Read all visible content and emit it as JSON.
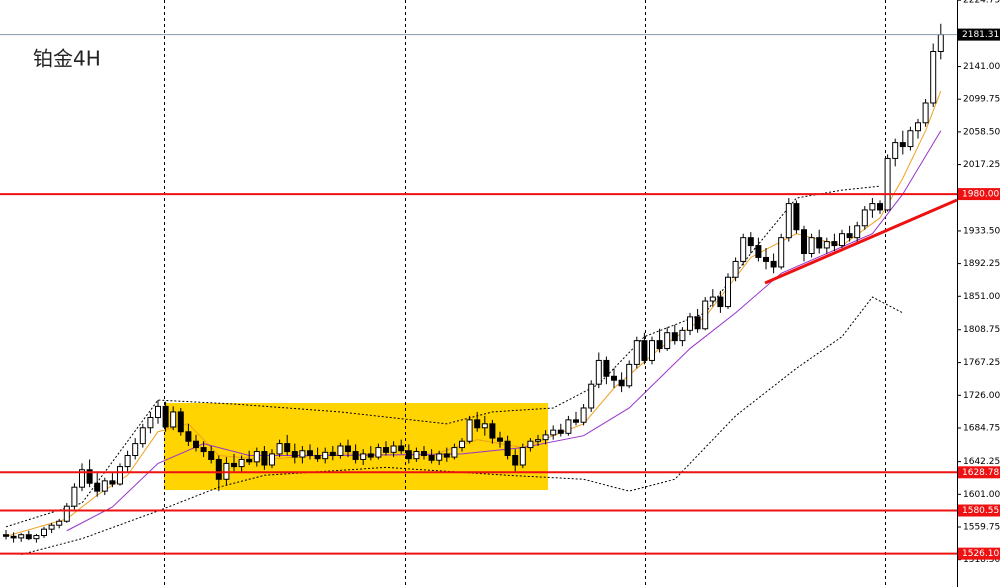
{
  "chart_data": {
    "type": "candlestick",
    "title": "铂金4H",
    "ylim": [
      1484,
      2225
    ],
    "yticks": [
      2224.75,
      {
        "value": 2141,
        "label": "2141.00"
      },
      2099.75,
      {
        "value": 2058.5,
        "label": "2058.50"
      },
      2017.25,
      {
        "value": 1933.5,
        "label": "1933.50"
      },
      1892.25,
      {
        "value": 1851,
        "label": "1851.00"
      },
      1808.75,
      1767.25,
      {
        "value": 1726,
        "label": "1726.00"
      },
      1684.75,
      1642.25,
      {
        "value": 1601,
        "label": "1601.00"
      },
      1559.75,
      {
        "value": 1518.5,
        "label": "1518.50"
      }
    ],
    "up_color": "#ffffff",
    "down_color": "#000000",
    "edge_color": "#000000",
    "ohlc": [
      [
        1550,
        1556,
        1544,
        1548
      ],
      [
        1548,
        1553,
        1540,
        1546
      ],
      [
        1546,
        1552,
        1541,
        1550
      ],
      [
        1550,
        1555,
        1543,
        1545
      ],
      [
        1545,
        1551,
        1540,
        1549
      ],
      [
        1549,
        1560,
        1546,
        1557
      ],
      [
        1557,
        1565,
        1552,
        1562
      ],
      [
        1562,
        1570,
        1558,
        1567
      ],
      [
        1567,
        1590,
        1565,
        1586
      ],
      [
        1586,
        1615,
        1582,
        1610
      ],
      [
        1610,
        1640,
        1605,
        1632
      ],
      [
        1632,
        1645,
        1610,
        1615
      ],
      [
        1615,
        1630,
        1598,
        1605
      ],
      [
        1605,
        1622,
        1600,
        1618
      ],
      [
        1618,
        1628,
        1610,
        1614
      ],
      [
        1614,
        1640,
        1612,
        1636
      ],
      [
        1636,
        1656,
        1630,
        1650
      ],
      [
        1650,
        1672,
        1645,
        1665
      ],
      [
        1665,
        1690,
        1660,
        1685
      ],
      [
        1685,
        1705,
        1678,
        1698
      ],
      [
        1698,
        1720,
        1690,
        1712
      ],
      [
        1712,
        1718,
        1680,
        1686
      ],
      [
        1686,
        1712,
        1682,
        1705
      ],
      [
        1705,
        1710,
        1675,
        1680
      ],
      [
        1680,
        1690,
        1662,
        1668
      ],
      [
        1668,
        1676,
        1655,
        1660
      ],
      [
        1660,
        1668,
        1648,
        1655
      ],
      [
        1655,
        1662,
        1640,
        1645
      ],
      [
        1645,
        1650,
        1605,
        1620
      ],
      [
        1620,
        1648,
        1612,
        1640
      ],
      [
        1640,
        1652,
        1630,
        1636
      ],
      [
        1636,
        1650,
        1628,
        1645
      ],
      [
        1645,
        1656,
        1638,
        1642
      ],
      [
        1642,
        1660,
        1636,
        1655
      ],
      [
        1655,
        1662,
        1632,
        1638
      ],
      [
        1638,
        1658,
        1634,
        1652
      ],
      [
        1652,
        1670,
        1648,
        1665
      ],
      [
        1665,
        1676,
        1650,
        1655
      ],
      [
        1655,
        1665,
        1640,
        1648
      ],
      [
        1648,
        1662,
        1640,
        1656
      ],
      [
        1656,
        1664,
        1645,
        1650
      ],
      [
        1650,
        1660,
        1642,
        1646
      ],
      [
        1646,
        1660,
        1640,
        1654
      ],
      [
        1654,
        1662,
        1644,
        1650
      ],
      [
        1650,
        1666,
        1646,
        1662
      ],
      [
        1662,
        1670,
        1648,
        1655
      ],
      [
        1655,
        1664,
        1640,
        1645
      ],
      [
        1645,
        1658,
        1638,
        1652
      ],
      [
        1652,
        1662,
        1644,
        1648
      ],
      [
        1648,
        1665,
        1645,
        1660
      ],
      [
        1660,
        1668,
        1650,
        1654
      ],
      [
        1654,
        1668,
        1648,
        1662
      ],
      [
        1662,
        1670,
        1652,
        1656
      ],
      [
        1656,
        1664,
        1640,
        1646
      ],
      [
        1646,
        1660,
        1642,
        1655
      ],
      [
        1655,
        1662,
        1645,
        1650
      ],
      [
        1650,
        1658,
        1640,
        1644
      ],
      [
        1644,
        1656,
        1638,
        1652
      ],
      [
        1652,
        1660,
        1642,
        1648
      ],
      [
        1648,
        1665,
        1645,
        1660
      ],
      [
        1660,
        1672,
        1655,
        1668
      ],
      [
        1668,
        1700,
        1665,
        1695
      ],
      [
        1695,
        1705,
        1680,
        1685
      ],
      [
        1685,
        1700,
        1675,
        1690
      ],
      [
        1690,
        1695,
        1665,
        1672
      ],
      [
        1672,
        1680,
        1660,
        1668
      ],
      [
        1668,
        1675,
        1645,
        1650
      ],
      [
        1650,
        1658,
        1630,
        1638
      ],
      [
        1638,
        1665,
        1634,
        1660
      ],
      [
        1660,
        1672,
        1655,
        1668
      ],
      [
        1668,
        1676,
        1662,
        1670
      ],
      [
        1670,
        1682,
        1664,
        1676
      ],
      [
        1676,
        1688,
        1670,
        1682
      ],
      [
        1682,
        1690,
        1674,
        1678
      ],
      [
        1678,
        1700,
        1675,
        1695
      ],
      [
        1695,
        1705,
        1688,
        1692
      ],
      [
        1692,
        1715,
        1688,
        1710
      ],
      [
        1710,
        1745,
        1705,
        1740
      ],
      [
        1740,
        1780,
        1735,
        1770
      ],
      [
        1770,
        1775,
        1740,
        1750
      ],
      [
        1750,
        1760,
        1735,
        1745
      ],
      [
        1745,
        1755,
        1730,
        1738
      ],
      [
        1738,
        1770,
        1735,
        1765
      ],
      [
        1765,
        1800,
        1760,
        1795
      ],
      [
        1795,
        1805,
        1765,
        1770
      ],
      [
        1770,
        1800,
        1765,
        1795
      ],
      [
        1795,
        1810,
        1780,
        1785
      ],
      [
        1785,
        1812,
        1782,
        1805
      ],
      [
        1805,
        1815,
        1790,
        1795
      ],
      [
        1795,
        1812,
        1788,
        1808
      ],
      [
        1808,
        1830,
        1802,
        1825
      ],
      [
        1825,
        1835,
        1805,
        1810
      ],
      [
        1810,
        1850,
        1808,
        1845
      ],
      [
        1845,
        1860,
        1838,
        1850
      ],
      [
        1850,
        1858,
        1830,
        1838
      ],
      [
        1838,
        1880,
        1835,
        1875
      ],
      [
        1875,
        1900,
        1870,
        1895
      ],
      [
        1895,
        1930,
        1890,
        1925
      ],
      [
        1925,
        1932,
        1905,
        1915
      ],
      [
        1915,
        1925,
        1895,
        1900
      ],
      [
        1900,
        1912,
        1885,
        1895
      ],
      [
        1895,
        1905,
        1880,
        1888
      ],
      [
        1888,
        1930,
        1885,
        1925
      ],
      [
        1925,
        1975,
        1920,
        1968
      ],
      [
        1968,
        1972,
        1930,
        1935
      ],
      [
        1935,
        1940,
        1895,
        1905
      ],
      [
        1905,
        1930,
        1900,
        1925
      ],
      [
        1925,
        1935,
        1905,
        1912
      ],
      [
        1912,
        1925,
        1905,
        1920
      ],
      [
        1920,
        1930,
        1908,
        1915
      ],
      [
        1915,
        1935,
        1912,
        1930
      ],
      [
        1930,
        1940,
        1920,
        1925
      ],
      [
        1925,
        1945,
        1920,
        1940
      ],
      [
        1940,
        1965,
        1935,
        1960
      ],
      [
        1960,
        1975,
        1950,
        1968
      ],
      [
        1968,
        1972,
        1955,
        1960
      ],
      [
        1960,
        2030,
        1958,
        2025
      ],
      [
        2025,
        2050,
        2015,
        2045
      ],
      [
        2045,
        2060,
        2030,
        2040
      ],
      [
        2040,
        2065,
        2035,
        2060
      ],
      [
        2060,
        2075,
        2050,
        2070
      ],
      [
        2070,
        2100,
        2065,
        2095
      ],
      [
        2095,
        2170,
        2090,
        2160
      ],
      [
        2160,
        2195,
        2150,
        2181.31
      ]
    ],
    "lines": [
      {
        "color": "#f0a020",
        "style": "solid",
        "x": [
          0,
          8,
          12,
          16,
          20,
          24,
          28,
          34,
          44,
          56,
          62,
          68,
          76,
          80,
          86,
          92,
          98,
          104,
          110,
          115,
          118,
          121,
          123
        ],
        "values": [
          1548,
          1570,
          1600,
          1625,
          1680,
          1690,
          1650,
          1645,
          1652,
          1650,
          1670,
          1660,
          1690,
          1735,
          1785,
          1825,
          1900,
          1930,
          1915,
          1950,
          2000,
          2060,
          2110
        ]
      },
      {
        "color": "#9933cc",
        "style": "solid",
        "x": [
          8,
          14,
          20,
          26,
          32,
          44,
          60,
          68,
          76,
          82,
          90,
          96,
          102,
          108,
          114,
          118,
          123
        ],
        "values": [
          1555,
          1585,
          1640,
          1665,
          1650,
          1650,
          1652,
          1660,
          1675,
          1710,
          1785,
          1830,
          1880,
          1905,
          1930,
          1980,
          2060
        ]
      },
      {
        "color": "#000000",
        "style": "dotted",
        "x": [
          0,
          10,
          20,
          30,
          44,
          58,
          64,
          72,
          78,
          84,
          92,
          98,
          104,
          110,
          115
        ],
        "values": [
          1560,
          1590,
          1720,
          1715,
          1705,
          1690,
          1705,
          1710,
          1740,
          1800,
          1830,
          1905,
          1975,
          1985,
          1990
        ]
      },
      {
        "color": "#000000",
        "style": "dotted",
        "x": [
          2,
          10,
          20,
          28,
          34,
          50,
          66,
          76,
          82,
          88,
          96,
          104,
          110,
          114,
          116,
          118
        ],
        "values": [
          1525,
          1545,
          1580,
          1610,
          1625,
          1635,
          1625,
          1620,
          1605,
          1620,
          1700,
          1760,
          1800,
          1850,
          1840,
          1830
        ]
      }
    ],
    "levels": [
      {
        "value": 1980,
        "label": "1980.00"
      },
      {
        "value": 1628.78,
        "label": "1628.78"
      },
      {
        "value": 1580.55,
        "label": "1580.55"
      },
      {
        "value": 1526.1,
        "label": "1526.10"
      }
    ],
    "level_color": "#ee1111"
  }
}
